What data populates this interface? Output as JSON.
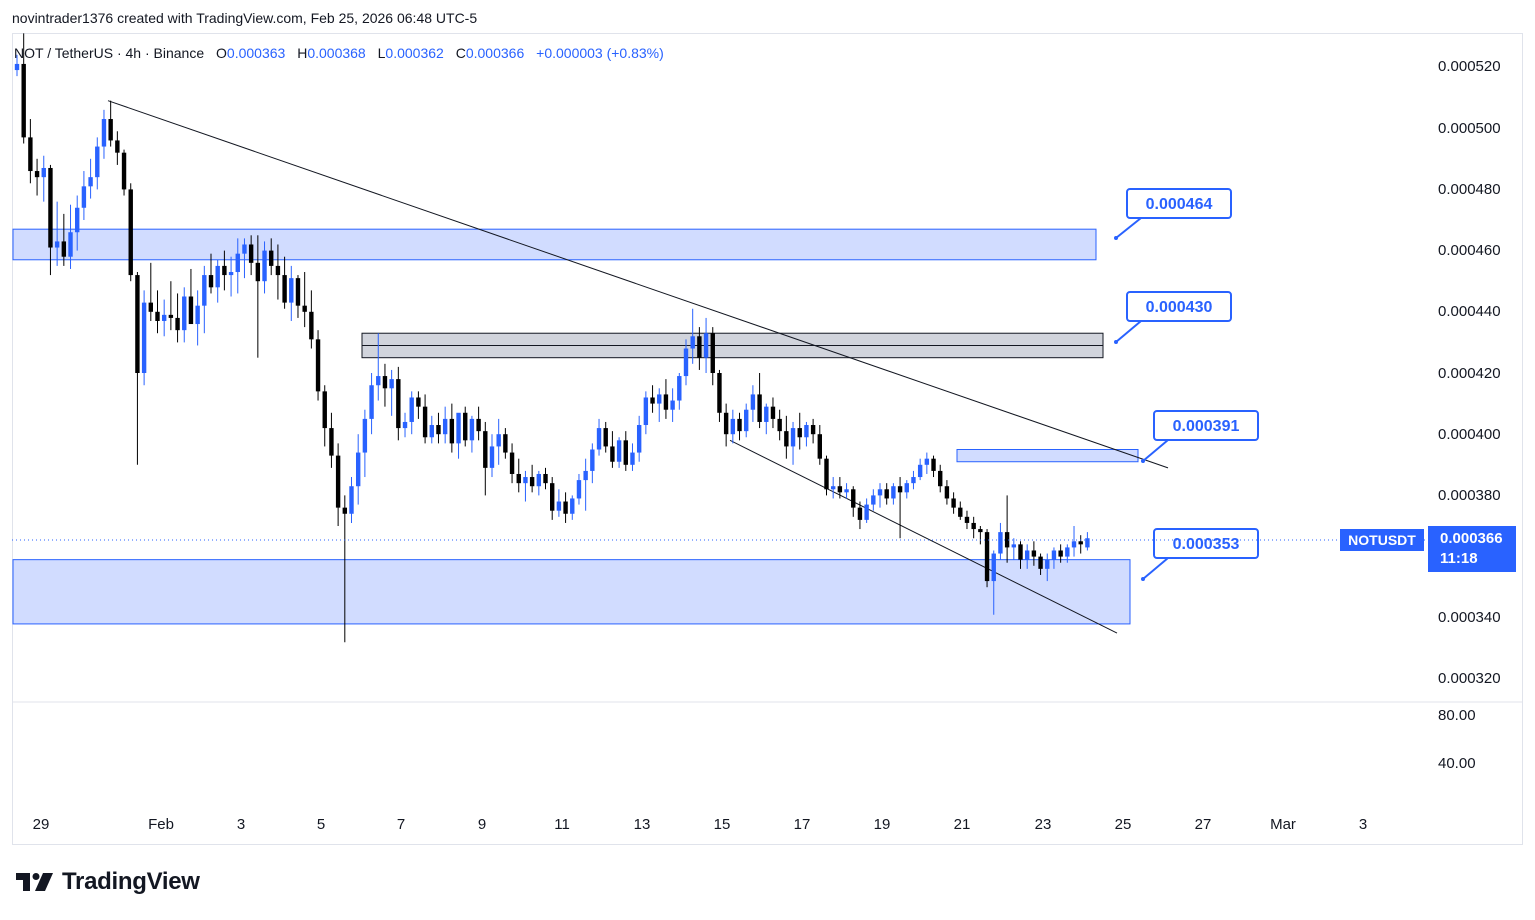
{
  "header": {
    "attribution": "novintrader1376 created with TradingView.com, Feb 25, 2026 06:48 UTC-5"
  },
  "legend": {
    "symbol": "NOT / TetherUS · 4h · Binance",
    "o_label": "O",
    "o_value": "0.000363",
    "h_label": "H",
    "h_value": "0.000368",
    "l_label": "L",
    "l_value": "0.000362",
    "c_label": "C",
    "c_value": "0.000366",
    "change": "+0.000003 (+0.83%)"
  },
  "price_axis": [
    "0.000520",
    "0.000500",
    "0.000480",
    "0.000460",
    "0.000440",
    "0.000420",
    "0.000400",
    "0.000380",
    "0.000360",
    "0.000340",
    "0.000320"
  ],
  "indicator_axis": [
    "80.00",
    "40.00"
  ],
  "time_axis": [
    "29",
    "Feb",
    "3",
    "5",
    "7",
    "9",
    "11",
    "13",
    "15",
    "17",
    "19",
    "21",
    "23",
    "25",
    "27",
    "Mar",
    "3"
  ],
  "ticker_badge": "NOTUSDT",
  "last_price": {
    "price": "0.000366",
    "countdown": "11:18"
  },
  "brand": {
    "name": "TradingView"
  },
  "colors": {
    "up": "#2962ff",
    "down": "#000000",
    "zone_blue": "#d1dcff",
    "zone_grey": "#d1d4dc",
    "accent": "#2962ff"
  },
  "chart_data": {
    "type": "candlestick",
    "ylim": [
      0.000316,
      0.000532
    ],
    "x_range_days": [
      "Jan 29",
      "Mar 3"
    ],
    "zones": [
      {
        "kind": "resistance",
        "color": "blue",
        "from": 0.000457,
        "to": 0.000467
      },
      {
        "kind": "resistance",
        "color": "grey",
        "from": 0.000425,
        "to": 0.000433
      },
      {
        "kind": "resistance",
        "color": "blue",
        "from": 0.000391,
        "to": 0.000395
      },
      {
        "kind": "support",
        "color": "blue",
        "from": 0.000338,
        "to": 0.000359
      }
    ],
    "callouts": [
      "0.000464",
      "0.000430",
      "0.000391",
      "0.000353"
    ],
    "trendlines": [
      {
        "from": [
          "Jan 30 12:00",
          0.000509
        ],
        "to": [
          "Feb 26 06:00",
          0.000389
        ]
      },
      {
        "from": [
          "Feb 15 04:00",
          0.000398
        ],
        "to": [
          "Feb 24 20:00",
          0.000335
        ]
      }
    ],
    "candles": [
      {
        "o": 0.000519,
        "h": 0.000524,
        "l": 0.000517,
        "c": 0.000521
      },
      {
        "o": 0.000521,
        "h": 0.000531,
        "l": 0.000495,
        "c": 0.000497
      },
      {
        "o": 0.000497,
        "h": 0.000503,
        "l": 0.000482,
        "c": 0.000486
      },
      {
        "o": 0.000486,
        "h": 0.00049,
        "l": 0.000478,
        "c": 0.000484
      },
      {
        "o": 0.000484,
        "h": 0.000491,
        "l": 0.000476,
        "c": 0.000487
      },
      {
        "o": 0.000487,
        "h": 0.000488,
        "l": 0.000452,
        "c": 0.000461
      },
      {
        "o": 0.000461,
        "h": 0.000476,
        "l": 0.000455,
        "c": 0.000463
      },
      {
        "o": 0.000463,
        "h": 0.000472,
        "l": 0.000455,
        "c": 0.000458
      },
      {
        "o": 0.000458,
        "h": 0.000475,
        "l": 0.000454,
        "c": 0.000466
      },
      {
        "o": 0.000466,
        "h": 0.000478,
        "l": 0.00046,
        "c": 0.000474
      },
      {
        "o": 0.000474,
        "h": 0.000486,
        "l": 0.00047,
        "c": 0.000481
      },
      {
        "o": 0.000481,
        "h": 0.00049,
        "l": 0.000477,
        "c": 0.000484
      },
      {
        "o": 0.000484,
        "h": 0.000497,
        "l": 0.00048,
        "c": 0.000494
      },
      {
        "o": 0.000494,
        "h": 0.000506,
        "l": 0.00049,
        "c": 0.000503
      },
      {
        "o": 0.000503,
        "h": 0.000509,
        "l": 0.000494,
        "c": 0.000496
      },
      {
        "o": 0.000496,
        "h": 0.000499,
        "l": 0.000488,
        "c": 0.000492
      },
      {
        "o": 0.000492,
        "h": 0.000493,
        "l": 0.000478,
        "c": 0.00048
      },
      {
        "o": 0.00048,
        "h": 0.000482,
        "l": 0.00045,
        "c": 0.000452
      },
      {
        "o": 0.000452,
        "h": 0.000453,
        "l": 0.00039,
        "c": 0.00042
      },
      {
        "o": 0.00042,
        "h": 0.000447,
        "l": 0.000416,
        "c": 0.000443
      },
      {
        "o": 0.000443,
        "h": 0.000456,
        "l": 0.000437,
        "c": 0.00044
      },
      {
        "o": 0.00044,
        "h": 0.000447,
        "l": 0.000433,
        "c": 0.000437
      },
      {
        "o": 0.000437,
        "h": 0.000444,
        "l": 0.000432,
        "c": 0.000439
      },
      {
        "o": 0.000439,
        "h": 0.00045,
        "l": 0.000434,
        "c": 0.000438
      },
      {
        "o": 0.000438,
        "h": 0.000446,
        "l": 0.00043,
        "c": 0.000434
      },
      {
        "o": 0.000434,
        "h": 0.000448,
        "l": 0.00043,
        "c": 0.000445
      },
      {
        "o": 0.000445,
        "h": 0.000454,
        "l": 0.000437,
        "c": 0.000436
      },
      {
        "o": 0.000436,
        "h": 0.000447,
        "l": 0.000429,
        "c": 0.000442
      },
      {
        "o": 0.000442,
        "h": 0.000455,
        "l": 0.000433,
        "c": 0.000452
      },
      {
        "o": 0.000452,
        "h": 0.000459,
        "l": 0.000446,
        "c": 0.000448
      },
      {
        "o": 0.000448,
        "h": 0.000457,
        "l": 0.000443,
        "c": 0.000455
      },
      {
        "o": 0.000455,
        "h": 0.00046,
        "l": 0.000447,
        "c": 0.000452
      },
      {
        "o": 0.000452,
        "h": 0.000458,
        "l": 0.000445,
        "c": 0.000453
      },
      {
        "o": 0.000453,
        "h": 0.000464,
        "l": 0.000446,
        "c": 0.000459
      },
      {
        "o": 0.000459,
        "h": 0.000464,
        "l": 0.000451,
        "c": 0.000462
      },
      {
        "o": 0.000462,
        "h": 0.000465,
        "l": 0.000452,
        "c": 0.000456
      },
      {
        "o": 0.000456,
        "h": 0.000465,
        "l": 0.000425,
        "c": 0.00045
      },
      {
        "o": 0.00045,
        "h": 0.000463,
        "l": 0.000446,
        "c": 0.00046
      },
      {
        "o": 0.00046,
        "h": 0.000464,
        "l": 0.000452,
        "c": 0.000455
      },
      {
        "o": 0.000455,
        "h": 0.000462,
        "l": 0.000444,
        "c": 0.000452
      },
      {
        "o": 0.000452,
        "h": 0.000458,
        "l": 0.000441,
        "c": 0.000443
      },
      {
        "o": 0.000443,
        "h": 0.000455,
        "l": 0.000437,
        "c": 0.000451
      },
      {
        "o": 0.000451,
        "h": 0.000452,
        "l": 0.000438,
        "c": 0.000442
      },
      {
        "o": 0.000442,
        "h": 0.000453,
        "l": 0.000435,
        "c": 0.00044
      },
      {
        "o": 0.00044,
        "h": 0.000447,
        "l": 0.000428,
        "c": 0.000431
      },
      {
        "o": 0.000431,
        "h": 0.000434,
        "l": 0.000411,
        "c": 0.000414
      },
      {
        "o": 0.000414,
        "h": 0.000416,
        "l": 0.000396,
        "c": 0.000402
      },
      {
        "o": 0.000402,
        "h": 0.000407,
        "l": 0.000389,
        "c": 0.000393
      },
      {
        "o": 0.000393,
        "h": 0.000397,
        "l": 0.00037,
        "c": 0.000376
      },
      {
        "o": 0.000376,
        "h": 0.00038,
        "l": 0.000332,
        "c": 0.000374
      },
      {
        "o": 0.000374,
        "h": 0.000386,
        "l": 0.000371,
        "c": 0.000383
      },
      {
        "o": 0.000383,
        "h": 0.0004,
        "l": 0.000377,
        "c": 0.000394
      },
      {
        "o": 0.000394,
        "h": 0.000408,
        "l": 0.000386,
        "c": 0.000405
      },
      {
        "o": 0.000405,
        "h": 0.00042,
        "l": 0.0004,
        "c": 0.000416
      },
      {
        "o": 0.000416,
        "h": 0.000433,
        "l": 0.000411,
        "c": 0.000419
      },
      {
        "o": 0.000419,
        "h": 0.000423,
        "l": 0.000409,
        "c": 0.000415
      },
      {
        "o": 0.000415,
        "h": 0.000421,
        "l": 0.000406,
        "c": 0.000418
      },
      {
        "o": 0.000418,
        "h": 0.000422,
        "l": 0.000398,
        "c": 0.000402
      },
      {
        "o": 0.000402,
        "h": 0.000407,
        "l": 0.000399,
        "c": 0.000404
      },
      {
        "o": 0.000404,
        "h": 0.000414,
        "l": 0.0004,
        "c": 0.000412
      },
      {
        "o": 0.000412,
        "h": 0.000414,
        "l": 0.000405,
        "c": 0.000409
      },
      {
        "o": 0.000409,
        "h": 0.000413,
        "l": 0.000397,
        "c": 0.000399
      },
      {
        "o": 0.000399,
        "h": 0.000406,
        "l": 0.000397,
        "c": 0.000403
      },
      {
        "o": 0.000403,
        "h": 0.000407,
        "l": 0.000397,
        "c": 0.0004
      },
      {
        "o": 0.0004,
        "h": 0.000409,
        "l": 0.000397,
        "c": 0.000405
      },
      {
        "o": 0.000405,
        "h": 0.00041,
        "l": 0.000394,
        "c": 0.000397
      },
      {
        "o": 0.000397,
        "h": 0.000405,
        "l": 0.000392,
        "c": 0.000407
      },
      {
        "o": 0.000407,
        "h": 0.000409,
        "l": 0.000396,
        "c": 0.000398
      },
      {
        "o": 0.000398,
        "h": 0.000406,
        "l": 0.000394,
        "c": 0.000405
      },
      {
        "o": 0.000405,
        "h": 0.000409,
        "l": 0.000398,
        "c": 0.000401
      },
      {
        "o": 0.000401,
        "h": 0.000404,
        "l": 0.00038,
        "c": 0.000389
      },
      {
        "o": 0.000389,
        "h": 0.0004,
        "l": 0.000386,
        "c": 0.000396
      },
      {
        "o": 0.000396,
        "h": 0.000405,
        "l": 0.00039,
        "c": 0.0004
      },
      {
        "o": 0.0004,
        "h": 0.000402,
        "l": 0.000392,
        "c": 0.000394
      },
      {
        "o": 0.000394,
        "h": 0.000397,
        "l": 0.000384,
        "c": 0.000387
      },
      {
        "o": 0.000387,
        "h": 0.000392,
        "l": 0.000381,
        "c": 0.000384
      },
      {
        "o": 0.000384,
        "h": 0.000388,
        "l": 0.000378,
        "c": 0.000386
      },
      {
        "o": 0.000386,
        "h": 0.00039,
        "l": 0.000381,
        "c": 0.000383
      },
      {
        "o": 0.000383,
        "h": 0.000388,
        "l": 0.00038,
        "c": 0.000387
      },
      {
        "o": 0.000387,
        "h": 0.000389,
        "l": 0.000382,
        "c": 0.000384
      },
      {
        "o": 0.000384,
        "h": 0.000386,
        "l": 0.000372,
        "c": 0.000375
      },
      {
        "o": 0.000375,
        "h": 0.000382,
        "l": 0.000373,
        "c": 0.000378
      },
      {
        "o": 0.000378,
        "h": 0.000381,
        "l": 0.000371,
        "c": 0.000374
      },
      {
        "o": 0.000374,
        "h": 0.00038,
        "l": 0.000372,
        "c": 0.000379
      },
      {
        "o": 0.000379,
        "h": 0.000387,
        "l": 0.000377,
        "c": 0.000385
      },
      {
        "o": 0.000385,
        "h": 0.000392,
        "l": 0.000375,
        "c": 0.000388
      },
      {
        "o": 0.000388,
        "h": 0.000397,
        "l": 0.000384,
        "c": 0.000395
      },
      {
        "o": 0.000395,
        "h": 0.000405,
        "l": 0.000393,
        "c": 0.000402
      },
      {
        "o": 0.000402,
        "h": 0.000404,
        "l": 0.000394,
        "c": 0.000396
      },
      {
        "o": 0.000396,
        "h": 0.000401,
        "l": 0.000389,
        "c": 0.000391
      },
      {
        "o": 0.000391,
        "h": 0.000399,
        "l": 0.000389,
        "c": 0.000398
      },
      {
        "o": 0.000398,
        "h": 0.000401,
        "l": 0.000388,
        "c": 0.00039
      },
      {
        "o": 0.00039,
        "h": 0.000397,
        "l": 0.000388,
        "c": 0.000394
      },
      {
        "o": 0.000394,
        "h": 0.000406,
        "l": 0.000391,
        "c": 0.000403
      },
      {
        "o": 0.000403,
        "h": 0.000414,
        "l": 0.0004,
        "c": 0.000412
      },
      {
        "o": 0.000412,
        "h": 0.000416,
        "l": 0.000407,
        "c": 0.00041
      },
      {
        "o": 0.00041,
        "h": 0.000415,
        "l": 0.000404,
        "c": 0.000413
      },
      {
        "o": 0.000413,
        "h": 0.000418,
        "l": 0.000405,
        "c": 0.000408
      },
      {
        "o": 0.000408,
        "h": 0.000415,
        "l": 0.000404,
        "c": 0.000411
      },
      {
        "o": 0.000411,
        "h": 0.00042,
        "l": 0.000408,
        "c": 0.000419
      },
      {
        "o": 0.000419,
        "h": 0.000431,
        "l": 0.000416,
        "c": 0.000428
      },
      {
        "o": 0.000428,
        "h": 0.000441,
        "l": 0.000423,
        "c": 0.000432
      },
      {
        "o": 0.000432,
        "h": 0.000435,
        "l": 0.000421,
        "c": 0.000425
      },
      {
        "o": 0.000425,
        "h": 0.000438,
        "l": 0.00042,
        "c": 0.000433
      },
      {
        "o": 0.000433,
        "h": 0.000435,
        "l": 0.000416,
        "c": 0.00042
      },
      {
        "o": 0.00042,
        "h": 0.000421,
        "l": 0.000404,
        "c": 0.000407
      },
      {
        "o": 0.000407,
        "h": 0.00041,
        "l": 0.000396,
        "c": 0.0004
      },
      {
        "o": 0.0004,
        "h": 0.000408,
        "l": 0.000397,
        "c": 0.000405
      },
      {
        "o": 0.000405,
        "h": 0.000407,
        "l": 0.000398,
        "c": 0.000401
      },
      {
        "o": 0.000401,
        "h": 0.00041,
        "l": 0.000399,
        "c": 0.000408
      },
      {
        "o": 0.000408,
        "h": 0.000416,
        "l": 0.000404,
        "c": 0.000413
      },
      {
        "o": 0.000413,
        "h": 0.00042,
        "l": 0.000402,
        "c": 0.000404
      },
      {
        "o": 0.000404,
        "h": 0.00041,
        "l": 0.0004,
        "c": 0.000409
      },
      {
        "o": 0.000409,
        "h": 0.000412,
        "l": 0.000402,
        "c": 0.000405
      },
      {
        "o": 0.000405,
        "h": 0.000408,
        "l": 0.000398,
        "c": 0.000401
      },
      {
        "o": 0.000401,
        "h": 0.000406,
        "l": 0.000392,
        "c": 0.000396
      },
      {
        "o": 0.000396,
        "h": 0.000404,
        "l": 0.00039,
        "c": 0.000402
      },
      {
        "o": 0.000402,
        "h": 0.000407,
        "l": 0.000395,
        "c": 0.000399
      },
      {
        "o": 0.000399,
        "h": 0.000404,
        "l": 0.000396,
        "c": 0.000403
      },
      {
        "o": 0.000403,
        "h": 0.000405,
        "l": 0.000397,
        "c": 0.0004
      },
      {
        "o": 0.0004,
        "h": 0.000403,
        "l": 0.00039,
        "c": 0.000392
      },
      {
        "o": 0.000392,
        "h": 0.000393,
        "l": 0.00038,
        "c": 0.000382
      },
      {
        "o": 0.000382,
        "h": 0.000386,
        "l": 0.000379,
        "c": 0.000383
      },
      {
        "o": 0.000383,
        "h": 0.000386,
        "l": 0.000379,
        "c": 0.000381
      },
      {
        "o": 0.000381,
        "h": 0.000384,
        "l": 0.000379,
        "c": 0.000382
      },
      {
        "o": 0.000382,
        "h": 0.000383,
        "l": 0.000373,
        "c": 0.000376
      },
      {
        "o": 0.000376,
        "h": 0.000378,
        "l": 0.000369,
        "c": 0.000372
      },
      {
        "o": 0.000372,
        "h": 0.000379,
        "l": 0.000371,
        "c": 0.000377
      },
      {
        "o": 0.000377,
        "h": 0.000382,
        "l": 0.000375,
        "c": 0.00038
      },
      {
        "o": 0.00038,
        "h": 0.000384,
        "l": 0.000376,
        "c": 0.000382
      },
      {
        "o": 0.000382,
        "h": 0.000384,
        "l": 0.000377,
        "c": 0.000379
      },
      {
        "o": 0.000379,
        "h": 0.000384,
        "l": 0.000377,
        "c": 0.000383
      },
      {
        "o": 0.000383,
        "h": 0.000386,
        "l": 0.000366,
        "c": 0.000381
      },
      {
        "o": 0.000381,
        "h": 0.000385,
        "l": 0.000379,
        "c": 0.000384
      },
      {
        "o": 0.000384,
        "h": 0.000388,
        "l": 0.000382,
        "c": 0.000386
      },
      {
        "o": 0.000386,
        "h": 0.000392,
        "l": 0.000385,
        "c": 0.00039
      },
      {
        "o": 0.00039,
        "h": 0.000394,
        "l": 0.000387,
        "c": 0.000392
      },
      {
        "o": 0.000392,
        "h": 0.000393,
        "l": 0.000386,
        "c": 0.000388
      },
      {
        "o": 0.000388,
        "h": 0.00039,
        "l": 0.000381,
        "c": 0.000383
      },
      {
        "o": 0.000383,
        "h": 0.000385,
        "l": 0.000377,
        "c": 0.000379
      },
      {
        "o": 0.000379,
        "h": 0.000381,
        "l": 0.000374,
        "c": 0.000376
      },
      {
        "o": 0.000376,
        "h": 0.000378,
        "l": 0.000372,
        "c": 0.000373
      },
      {
        "o": 0.000373,
        "h": 0.000375,
        "l": 0.000369,
        "c": 0.000371
      },
      {
        "o": 0.000371,
        "h": 0.000373,
        "l": 0.000366,
        "c": 0.000369
      },
      {
        "o": 0.000369,
        "h": 0.00037,
        "l": 0.000364,
        "c": 0.000368
      },
      {
        "o": 0.000368,
        "h": 0.000369,
        "l": 0.00035,
        "c": 0.000352
      },
      {
        "o": 0.000352,
        "h": 0.000362,
        "l": 0.000341,
        "c": 0.000361
      },
      {
        "o": 0.000361,
        "h": 0.000371,
        "l": 0.000359,
        "c": 0.000368
      },
      {
        "o": 0.000368,
        "h": 0.00038,
        "l": 0.000358,
        "c": 0.000363
      },
      {
        "o": 0.000363,
        "h": 0.000366,
        "l": 0.000359,
        "c": 0.000364
      },
      {
        "o": 0.000364,
        "h": 0.000365,
        "l": 0.000356,
        "c": 0.000359
      },
      {
        "o": 0.000359,
        "h": 0.000364,
        "l": 0.000356,
        "c": 0.000362
      },
      {
        "o": 0.000362,
        "h": 0.000365,
        "l": 0.000357,
        "c": 0.00036
      },
      {
        "o": 0.00036,
        "h": 0.000361,
        "l": 0.000354,
        "c": 0.000356
      },
      {
        "o": 0.000356,
        "h": 0.000361,
        "l": 0.000352,
        "c": 0.000359
      },
      {
        "o": 0.000359,
        "h": 0.000363,
        "l": 0.000356,
        "c": 0.000362
      },
      {
        "o": 0.000362,
        "h": 0.000364,
        "l": 0.000358,
        "c": 0.00036
      },
      {
        "o": 0.00036,
        "h": 0.000364,
        "l": 0.000358,
        "c": 0.000363
      },
      {
        "o": 0.000363,
        "h": 0.00037,
        "l": 0.00036,
        "c": 0.000365
      },
      {
        "o": 0.000365,
        "h": 0.000367,
        "l": 0.000361,
        "c": 0.000364
      },
      {
        "o": 0.000363,
        "h": 0.000368,
        "l": 0.000362,
        "c": 0.000366
      }
    ]
  }
}
